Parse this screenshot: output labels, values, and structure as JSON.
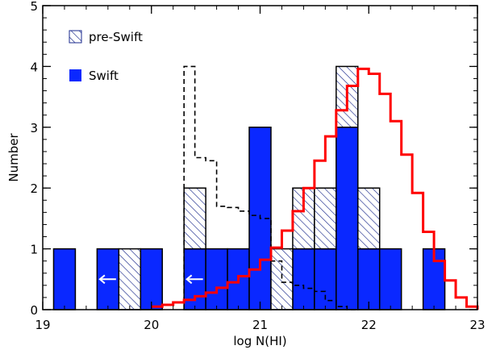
{
  "chart_data": {
    "type": "bar",
    "title": "",
    "xlabel": "log N(HI)",
    "ylabel": "Number",
    "xlim": [
      19,
      23
    ],
    "ylim": [
      0,
      5
    ],
    "x_ticks": [
      "19",
      "20",
      "21",
      "22",
      "23"
    ],
    "y_ticks": [
      "0",
      "1",
      "2",
      "3",
      "4",
      "5"
    ],
    "bin_width": 0.2,
    "legend_position": "top-left",
    "series": [
      {
        "name": "Swift",
        "kind": "bars-solid",
        "color": "#0a28ff",
        "bins": [
          {
            "x": 19.1,
            "v": 1
          },
          {
            "x": 19.5,
            "v": 1
          },
          {
            "x": 19.9,
            "v": 1
          },
          {
            "x": 20.3,
            "v": 1
          },
          {
            "x": 20.5,
            "v": 1
          },
          {
            "x": 20.7,
            "v": 1
          },
          {
            "x": 20.9,
            "v": 3
          },
          {
            "x": 21.3,
            "v": 1
          },
          {
            "x": 21.5,
            "v": 1
          },
          {
            "x": 21.7,
            "v": 3
          },
          {
            "x": 21.9,
            "v": 1
          },
          {
            "x": 22.1,
            "v": 1
          },
          {
            "x": 22.5,
            "v": 1
          }
        ]
      },
      {
        "name": "pre-Swift",
        "kind": "bars-hatched",
        "color": "#1a2a8c",
        "bins": [
          {
            "x": 19.7,
            "base": 0,
            "v": 1
          },
          {
            "x": 20.3,
            "base": 1,
            "v": 1
          },
          {
            "x": 21.1,
            "base": 0,
            "v": 1
          },
          {
            "x": 21.3,
            "base": 1,
            "v": 1
          },
          {
            "x": 21.5,
            "base": 1,
            "v": 1
          },
          {
            "x": 21.7,
            "base": 3,
            "v": 1
          },
          {
            "x": 21.9,
            "base": 1,
            "v": 1
          }
        ]
      },
      {
        "kind": "step-dashed",
        "color": "#000000",
        "steps": [
          [
            20.3,
            4.0
          ],
          [
            20.4,
            2.5
          ],
          [
            20.5,
            2.45
          ],
          [
            20.6,
            1.7
          ],
          [
            20.7,
            1.68
          ],
          [
            20.8,
            1.62
          ],
          [
            20.9,
            1.55
          ],
          [
            21.0,
            1.5
          ],
          [
            21.1,
            0.8
          ],
          [
            21.2,
            0.45
          ],
          [
            21.3,
            0.4
          ],
          [
            21.4,
            0.35
          ],
          [
            21.5,
            0.3
          ],
          [
            21.6,
            0.15
          ],
          [
            21.7,
            0.05
          ],
          [
            21.8,
            0.0
          ]
        ]
      },
      {
        "kind": "step-solid",
        "color": "#ff0000",
        "steps": [
          [
            20.0,
            0.05
          ],
          [
            20.1,
            0.08
          ],
          [
            20.2,
            0.12
          ],
          [
            20.3,
            0.16
          ],
          [
            20.4,
            0.22
          ],
          [
            20.5,
            0.28
          ],
          [
            20.6,
            0.36
          ],
          [
            20.7,
            0.45
          ],
          [
            20.8,
            0.55
          ],
          [
            20.9,
            0.66
          ],
          [
            21.0,
            0.82
          ],
          [
            21.1,
            1.02
          ],
          [
            21.2,
            1.3
          ],
          [
            21.3,
            1.62
          ],
          [
            21.4,
            2.0
          ],
          [
            21.5,
            2.45
          ],
          [
            21.6,
            2.85
          ],
          [
            21.7,
            3.28
          ],
          [
            21.8,
            3.68
          ],
          [
            21.9,
            3.96
          ],
          [
            22.0,
            3.88
          ],
          [
            22.1,
            3.55
          ],
          [
            22.2,
            3.1
          ],
          [
            22.3,
            2.55
          ],
          [
            22.4,
            1.92
          ],
          [
            22.5,
            1.28
          ],
          [
            22.6,
            0.8
          ],
          [
            22.7,
            0.48
          ],
          [
            22.8,
            0.2
          ],
          [
            22.9,
            0.05
          ],
          [
            23.0,
            0.0
          ]
        ]
      }
    ],
    "upper_limit_arrows": [
      {
        "x": 19.6,
        "y": 0.5
      },
      {
        "x": 20.4,
        "y": 0.5
      }
    ]
  }
}
